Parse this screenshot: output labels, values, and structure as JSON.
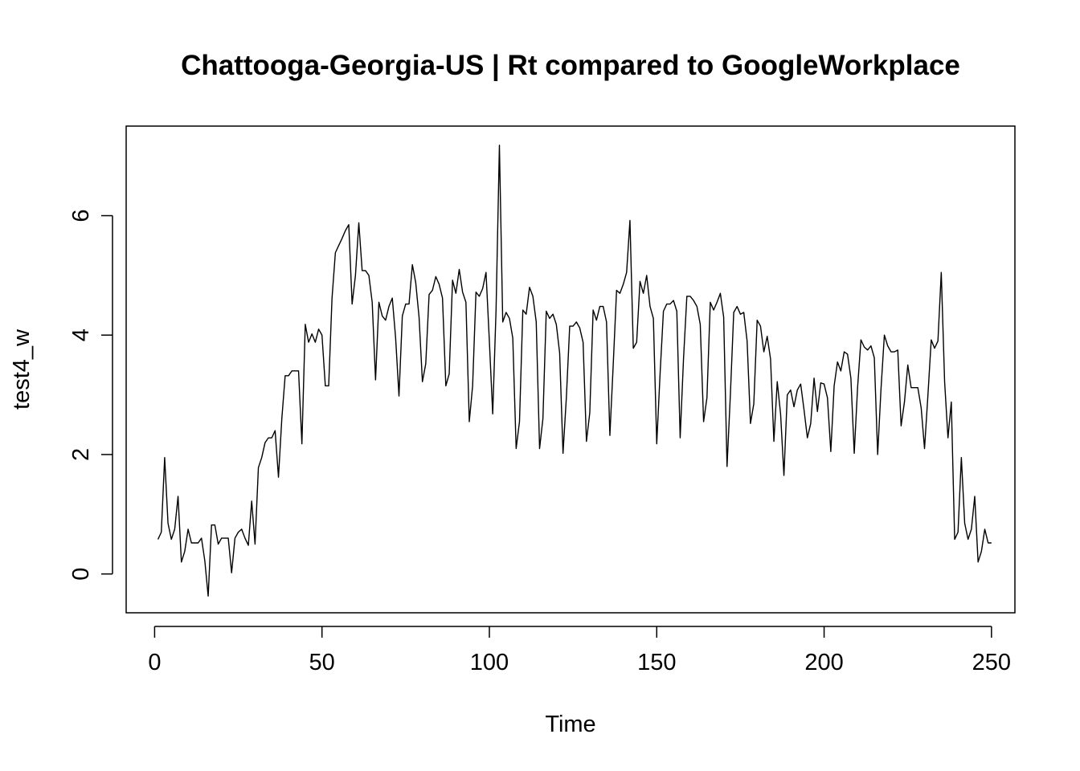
{
  "chart_data": {
    "type": "line",
    "title": "Chattooga-Georgia-US | Rt compared to GoogleWorkplace",
    "xlabel": "Time",
    "ylabel": "test4_w",
    "xlim": [
      -8.5,
      257
    ],
    "ylim": [
      -0.65,
      7.5
    ],
    "x_ticks": [
      0,
      50,
      100,
      150,
      200,
      250
    ],
    "y_ticks": [
      0,
      2,
      4,
      6
    ],
    "grid": false,
    "series": [
      {
        "values": [
          0.58,
          0.7,
          1.95,
          0.85,
          0.58,
          0.75,
          1.3,
          0.2,
          0.38,
          0.75,
          0.52,
          0.52,
          0.52,
          0.6,
          0.22,
          -0.37,
          0.82,
          0.82,
          0.5,
          0.6,
          0.6,
          0.6,
          0.02,
          0.6,
          0.7,
          0.75,
          0.6,
          0.48,
          1.22,
          0.5,
          1.78,
          1.95,
          2.2,
          2.28,
          2.28,
          2.4,
          1.62,
          2.6,
          3.32,
          3.32,
          3.4,
          3.4,
          3.4,
          2.18,
          4.18,
          3.88,
          4.02,
          3.88,
          4.1,
          4.0,
          3.15,
          3.15,
          4.62,
          5.38,
          5.5,
          5.62,
          5.75,
          5.85,
          4.52,
          5.0,
          5.88,
          5.08,
          5.08,
          5.0,
          4.55,
          3.25,
          4.55,
          4.32,
          4.25,
          4.48,
          4.62,
          3.95,
          2.98,
          4.32,
          4.52,
          4.52,
          5.18,
          4.88,
          4.3,
          3.22,
          3.52,
          4.68,
          4.75,
          4.98,
          4.85,
          4.62,
          3.15,
          3.35,
          4.92,
          4.7,
          5.1,
          4.72,
          4.55,
          2.55,
          3.15,
          4.72,
          4.65,
          4.78,
          5.05,
          3.9,
          2.68,
          4.42,
          7.18,
          4.22,
          4.38,
          4.28,
          3.95,
          2.1,
          2.55,
          4.42,
          4.35,
          4.8,
          4.65,
          4.22,
          2.1,
          2.6,
          4.4,
          4.28,
          4.35,
          4.18,
          3.7,
          2.02,
          2.95,
          4.15,
          4.15,
          4.22,
          4.12,
          3.88,
          2.22,
          2.7,
          4.42,
          4.25,
          4.48,
          4.48,
          4.22,
          2.32,
          3.5,
          4.75,
          4.7,
          4.85,
          5.05,
          5.92,
          3.78,
          3.88,
          4.9,
          4.7,
          5.0,
          4.48,
          4.28,
          2.18,
          3.35,
          4.4,
          4.52,
          4.52,
          4.58,
          4.4,
          2.28,
          3.6,
          4.65,
          4.65,
          4.58,
          4.48,
          4.18,
          2.55,
          2.95,
          4.55,
          4.42,
          4.55,
          4.7,
          4.3,
          1.8,
          3.0,
          4.38,
          4.48,
          4.35,
          4.38,
          3.9,
          2.52,
          2.85,
          4.25,
          4.15,
          3.72,
          3.98,
          3.6,
          2.22,
          3.22,
          2.68,
          1.65,
          3.0,
          3.08,
          2.8,
          3.08,
          3.18,
          2.75,
          2.28,
          2.52,
          3.28,
          2.72,
          3.2,
          3.18,
          2.95,
          2.05,
          3.15,
          3.55,
          3.4,
          3.72,
          3.68,
          3.28,
          2.02,
          3.12,
          3.92,
          3.8,
          3.75,
          3.82,
          3.62,
          2.0,
          3.1,
          4.0,
          3.82,
          3.72,
          3.72,
          3.75,
          2.48,
          2.88,
          3.5,
          3.12,
          3.12,
          3.12,
          2.78,
          2.1,
          2.98,
          3.92,
          3.78,
          3.9,
          5.05,
          3.22,
          2.28,
          2.88,
          0.58,
          0.7,
          1.95,
          0.85,
          0.58,
          0.75,
          1.3,
          0.2,
          0.38,
          0.75,
          0.52,
          0.52
        ]
      }
    ]
  }
}
